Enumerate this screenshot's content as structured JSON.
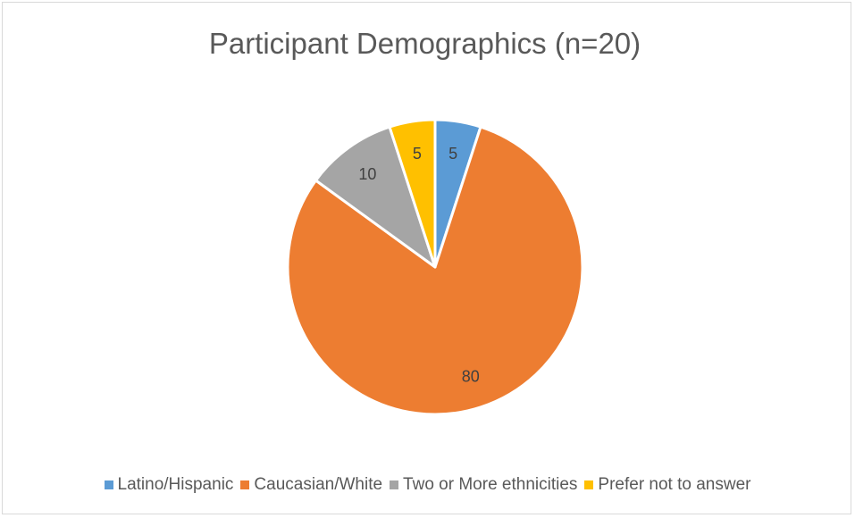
{
  "chart_data": {
    "type": "pie",
    "title": "Participant Demographics (n=20)",
    "categories": [
      "Latino/Hispanic",
      "Caucasian/White",
      "Two or More ethnicities",
      "Prefer not to answer"
    ],
    "values": [
      5,
      80,
      10,
      5
    ],
    "data_labels": [
      "5",
      "80",
      "10",
      "5"
    ],
    "colors": [
      "#5b9bd5",
      "#ed7d31",
      "#a5a5a5",
      "#ffc000"
    ],
    "legend_position": "bottom",
    "start_angle_deg": 0,
    "direction": "clockwise"
  }
}
